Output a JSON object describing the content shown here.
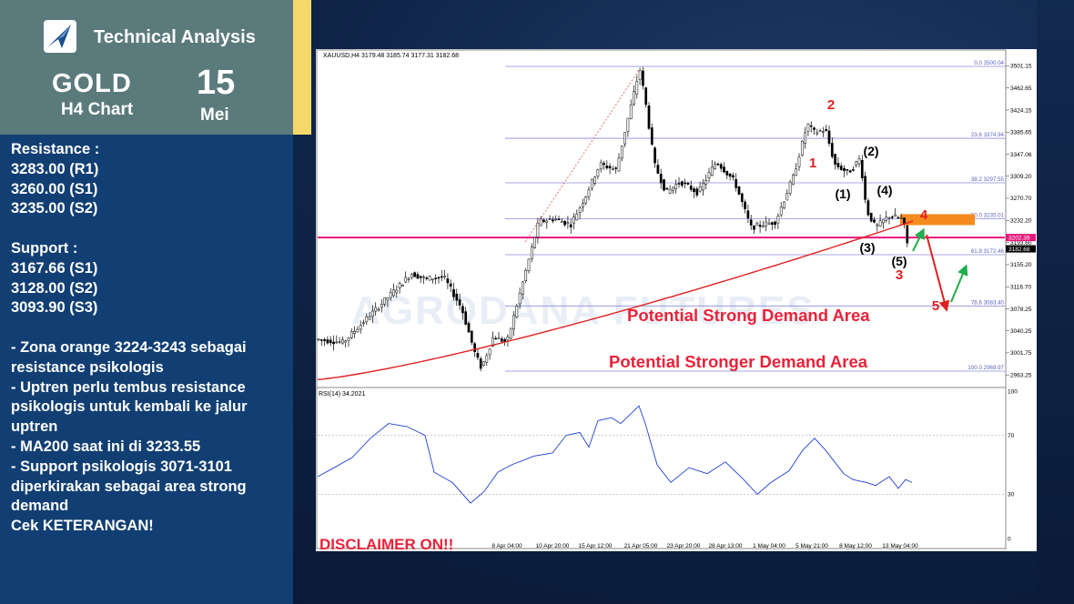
{
  "header": {
    "title": "Technical Analysis",
    "instrument": "GOLD",
    "timeframe_label": "H4 Chart",
    "day": "15",
    "month": "Mei"
  },
  "info_lines": [
    "Resistance :",
    "3283.00 (R1)",
    "3260.00 (S1)",
    "3235.00 (S2)",
    "",
    "Support :",
    "3167.66 (S1)",
    "3128.00 (S2)",
    "3093.90 (S3)",
    "",
    "- Zona orange 3224-3243 sebagai",
    "resistance psikologis",
    "- Uptren perlu tembus resistance",
    "psikologis untuk kembali ke jalur",
    "uptren",
    "- MA200 saat ini di 3233.55",
    "- Support psikologis 3071-3101",
    "diperkirakan sebagai area strong",
    "demand",
    "Cek KETERANGAN!"
  ],
  "chart_data": [
    {
      "type": "candlestick",
      "header_text": "XAUUSD,H4  3179.48 3185.74 3177.31 3182.68",
      "watermark": "AGRODANA FUTURES",
      "ylim": [
        2945,
        3520
      ],
      "y_ticks": [
        "3501.15",
        "3462.65",
        "3424.15",
        "3385.65",
        "3347.06",
        "3309.20",
        "3270.70",
        "3232.20",
        "3193.60",
        "3155.20",
        "3116.70",
        "3078.25",
        "3040.25",
        "3001.75",
        "2963.25"
      ],
      "x_ticks": [
        "8 Apr 04:00",
        "10 Apr 20:00",
        "15 Apr 12:00",
        "21 Apr 05:00",
        "23 Apr 20:00",
        "28 Apr 13:00",
        "1 May 04:00",
        "5 May 21:00",
        "8 May 12:00",
        "13 May 04:00"
      ],
      "price_labels": [
        {
          "text": "3202.39",
          "color": "#e8177a"
        },
        {
          "text": "3182.68",
          "color": "#000000"
        }
      ],
      "fib_levels": [
        {
          "label": "0.0",
          "price": "3500.04",
          "value": 3500.04
        },
        {
          "label": "23.6",
          "price": "3374.94",
          "value": 3374.94
        },
        {
          "label": "38.2",
          "price": "3297.55",
          "value": 3297.55
        },
        {
          "label": "50.0",
          "price": "3235.01",
          "value": 3235.01
        },
        {
          "label": "61.8",
          "price": "3172.46",
          "value": 3172.46
        },
        {
          "label": "78.6",
          "price": "3083.40",
          "value": 3083.4
        },
        {
          "label": "100.0",
          "price": "2969.97",
          "value": 2969.97
        }
      ],
      "horizontal_line": 3202.39,
      "orange_zone": [
        3224,
        3243
      ],
      "ma200_label": "MA200",
      "ma200_value": 3233.55,
      "wave_labels_red": [
        "1",
        "2",
        "3",
        "4",
        "5"
      ],
      "wave_labels_black": [
        "(1)",
        "(2)",
        "(3)",
        "(4)",
        "(5)"
      ],
      "annotations": [
        "Potential Strong Demand Area",
        "Potential Stronger Demand Area"
      ],
      "disclaimer": "DISCLAIMER ON!!",
      "colors": {
        "up": "#000000",
        "down": "#000000",
        "ma": "#e02020",
        "fib": "#8a8adc",
        "hline": "#e8177a",
        "zone": "#f58a1e",
        "annotation": "#e8233a"
      }
    },
    {
      "type": "line",
      "title": "RSI(14) 34.2021",
      "ylim": [
        0,
        100
      ],
      "y_ticks": [
        "100",
        "70",
        "30",
        "0"
      ],
      "levels": [
        70,
        30
      ],
      "last_value": 34.2021,
      "color": "#1f3fd1"
    }
  ]
}
